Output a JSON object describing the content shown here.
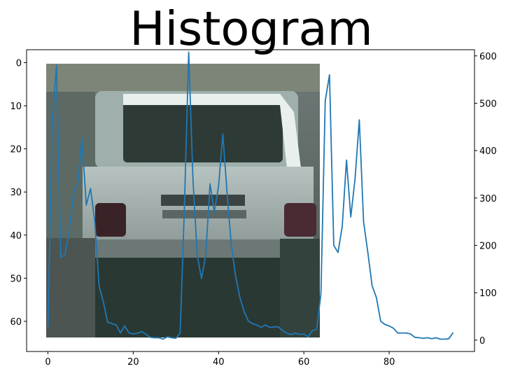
{
  "chart_data": {
    "type": "line",
    "title": "Histogram",
    "xlabel": "",
    "ylabel": "",
    "background_image": {
      "description_name": "car-rear-image",
      "x_extent": [
        0,
        63
      ],
      "y_extent": [
        0,
        63
      ]
    },
    "left_axis": {
      "ylim": [
        67,
        -3
      ],
      "ticks": [
        0,
        10,
        20,
        30,
        40,
        50,
        60
      ],
      "inverted": true
    },
    "right_axis": {
      "ylim": [
        -24,
        613
      ],
      "ticks": [
        0,
        100,
        200,
        300,
        400,
        500,
        600
      ]
    },
    "x_axis": {
      "xlim": [
        -5,
        100
      ],
      "ticks": [
        0,
        20,
        40,
        60,
        80
      ]
    },
    "grid": false,
    "series": [
      {
        "color": "#1f77b4",
        "x": [
          0,
          1,
          2,
          3,
          4,
          5,
          6,
          7,
          8,
          9,
          10,
          11,
          12,
          13,
          14,
          15,
          16,
          17,
          18,
          19,
          20,
          21,
          22,
          23,
          24,
          25,
          26,
          27,
          28,
          29,
          30,
          31,
          32,
          33,
          34,
          35,
          36,
          37,
          38,
          39,
          40,
          41,
          42,
          43,
          44,
          45,
          46,
          47,
          48,
          49,
          50,
          51,
          52,
          53,
          54,
          55,
          56,
          57,
          58,
          59,
          60,
          61,
          62,
          63,
          64,
          65,
          66,
          67,
          68,
          69,
          70,
          71,
          72,
          73,
          74,
          75,
          76,
          77,
          78,
          79,
          80,
          81,
          82,
          83,
          84,
          85,
          86,
          87,
          88,
          89,
          90,
          91,
          92,
          93,
          94,
          95
        ],
        "values": [
          27,
          460,
          580,
          175,
          180,
          235,
          310,
          330,
          425,
          285,
          320,
          250,
          115,
          80,
          38,
          35,
          32,
          15,
          30,
          15,
          13,
          15,
          18,
          12,
          6,
          5,
          5,
          2,
          7,
          5,
          4,
          15,
          280,
          608,
          340,
          180,
          130,
          180,
          330,
          270,
          325,
          435,
          310,
          200,
          135,
          90,
          60,
          40,
          35,
          32,
          27,
          32,
          27,
          28,
          28,
          20,
          15,
          12,
          15,
          12,
          13,
          7,
          20,
          23,
          98,
          505,
          560,
          200,
          185,
          240,
          380,
          260,
          340,
          465,
          250,
          185,
          115,
          90,
          40,
          33,
          30,
          25,
          15,
          15,
          15,
          13,
          6,
          5,
          4,
          5,
          3,
          5,
          2,
          2,
          3,
          16
        ]
      }
    ]
  }
}
